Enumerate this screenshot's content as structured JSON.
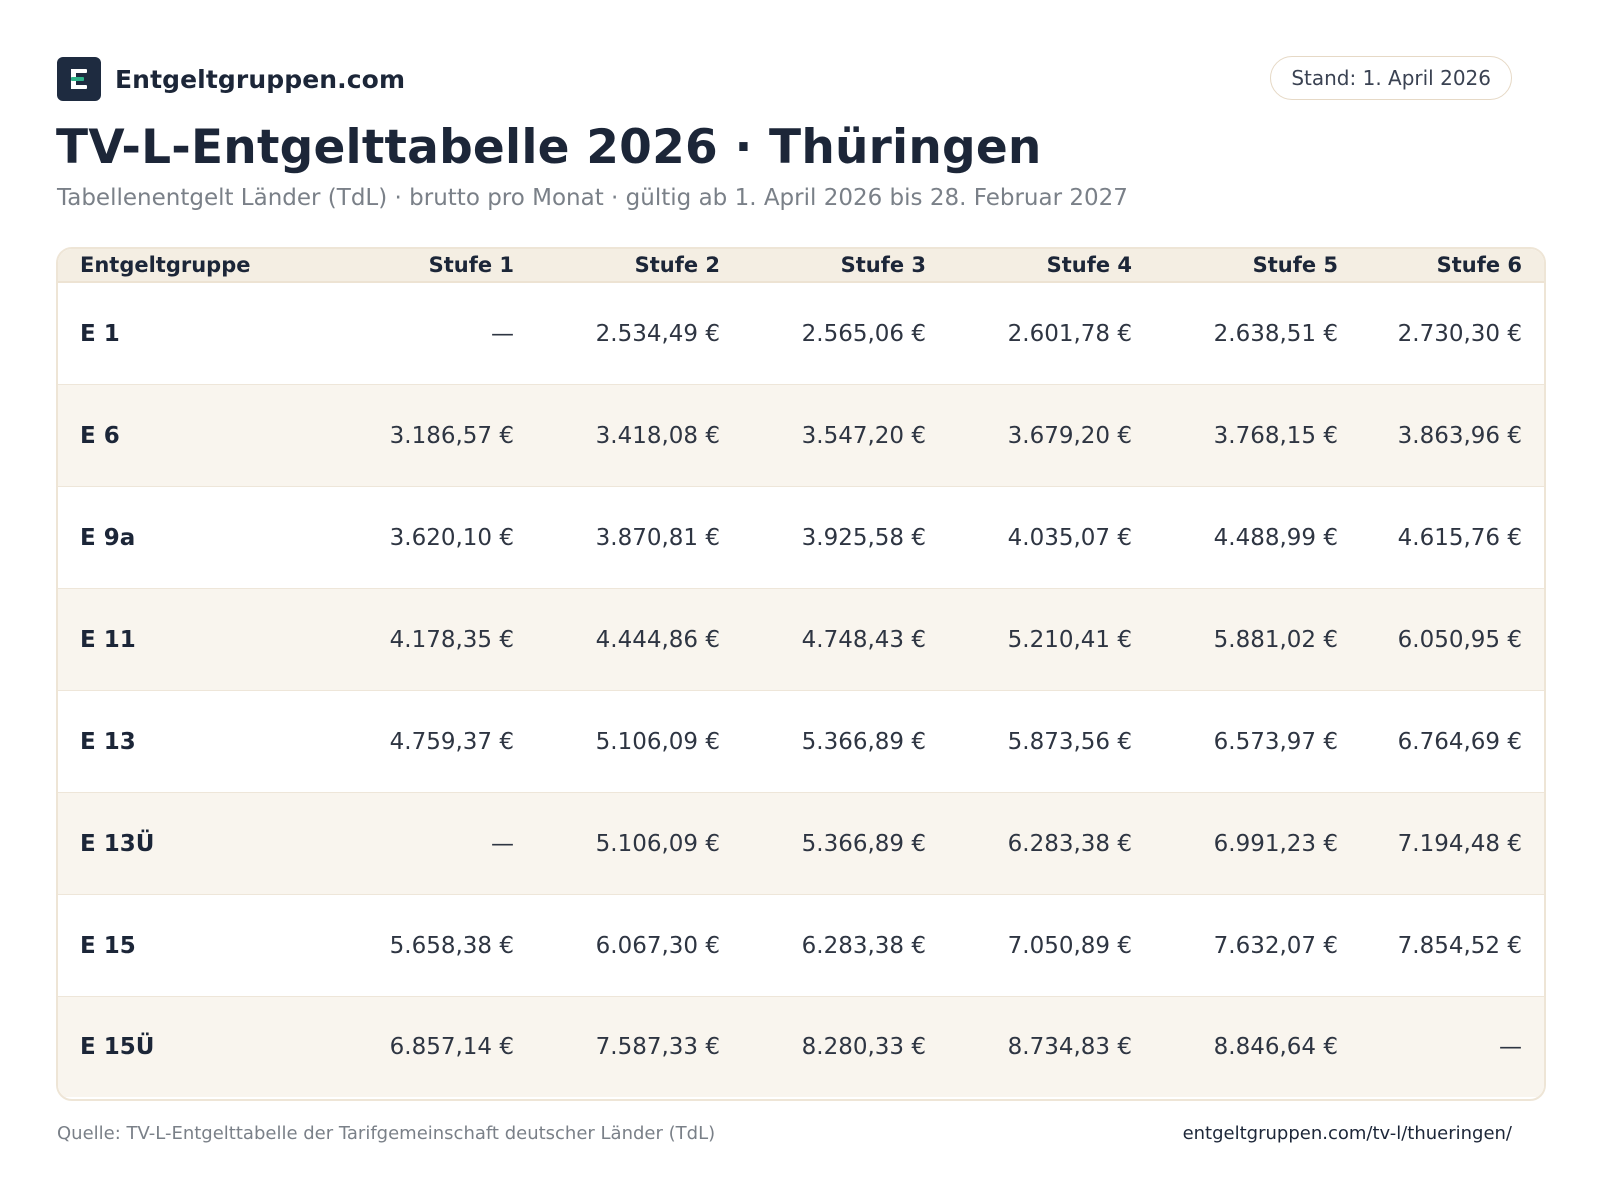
{
  "brand": {
    "name": "Entgeltgruppen.com",
    "icon": "e-logo-icon",
    "accent_color": "#2fb48a",
    "logo_color": "#1e2b40"
  },
  "stand_badge": "Stand: 1. April 2026",
  "title": "TV-L-Entgelttabelle 2026 · Thüringen",
  "subtitle": "Tabellenentgelt Länder (TdL) · brutto pro Monat · gültig ab 1. April 2026 bis 28. Februar 2027",
  "table": {
    "headers": [
      "Entgeltgruppe",
      "Stufe 1",
      "Stufe 2",
      "Stufe 3",
      "Stufe 4",
      "Stufe 5",
      "Stufe 6"
    ],
    "rows": [
      {
        "group": "E 1",
        "values": [
          "—",
          "2.534,49 €",
          "2.565,06 €",
          "2.601,78 €",
          "2.638,51 €",
          "2.730,30 €"
        ]
      },
      {
        "group": "E 6",
        "values": [
          "3.186,57 €",
          "3.418,08 €",
          "3.547,20 €",
          "3.679,20 €",
          "3.768,15 €",
          "3.863,96 €"
        ]
      },
      {
        "group": "E 9a",
        "values": [
          "3.620,10 €",
          "3.870,81 €",
          "3.925,58 €",
          "4.035,07 €",
          "4.488,99 €",
          "4.615,76 €"
        ]
      },
      {
        "group": "E 11",
        "values": [
          "4.178,35 €",
          "4.444,86 €",
          "4.748,43 €",
          "5.210,41 €",
          "5.881,02 €",
          "6.050,95 €"
        ]
      },
      {
        "group": "E 13",
        "values": [
          "4.759,37 €",
          "5.106,09 €",
          "5.366,89 €",
          "5.873,56 €",
          "6.573,97 €",
          "6.764,69 €"
        ]
      },
      {
        "group": "E 13Ü",
        "values": [
          "—",
          "5.106,09 €",
          "5.366,89 €",
          "6.283,38 €",
          "6.991,23 €",
          "7.194,48 €"
        ]
      },
      {
        "group": "E 15",
        "values": [
          "5.658,38 €",
          "6.067,30 €",
          "6.283,38 €",
          "7.050,89 €",
          "7.632,07 €",
          "7.854,52 €"
        ]
      },
      {
        "group": "E 15Ü",
        "values": [
          "6.857,14 €",
          "7.587,33 €",
          "8.280,33 €",
          "8.734,83 €",
          "8.846,64 €",
          "—"
        ]
      }
    ]
  },
  "footer": {
    "source": "Quelle: TV-L-Entgelttabelle der Tarifgemeinschaft deutscher Länder (TdL)",
    "url": "entgeltgruppen.com/tv-l/thueringen/"
  }
}
